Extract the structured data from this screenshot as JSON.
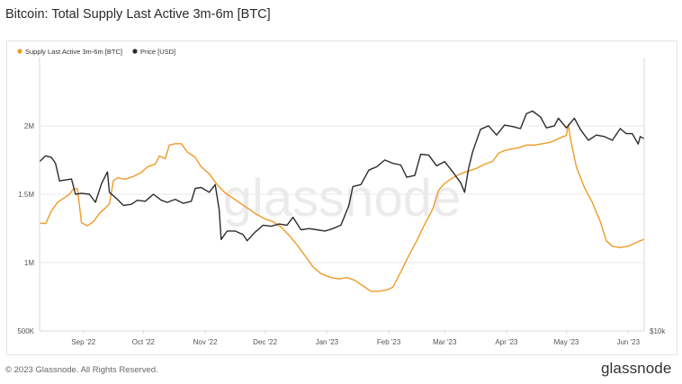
{
  "title": "Bitcoin: Total Supply Last Active 3m-6m [BTC]",
  "footer": {
    "copyright": "© 2023 Glassnode. All Rights Reserved.",
    "brand": "glassnode"
  },
  "watermark": "glassnode",
  "colors": {
    "supply": "#f09a27",
    "price": "#2c2c2c",
    "grid": "#e9e9e9",
    "axis_text": "#555555",
    "watermark": "#ebebeb"
  },
  "chart_data": {
    "type": "line",
    "title": "Bitcoin: Total Supply Last Active 3m-6m [BTC]",
    "legend_position": "top-left",
    "grid": true,
    "x_range": [
      "2022-08-10",
      "2023-06-09"
    ],
    "x_ticks": [
      {
        "date": "2022-09-01",
        "label": "Sep '22"
      },
      {
        "date": "2022-10-01",
        "label": "Oct '22"
      },
      {
        "date": "2022-11-01",
        "label": "Nov '22"
      },
      {
        "date": "2022-12-01",
        "label": "Dec '22"
      },
      {
        "date": "2023-01-01",
        "label": "Jan '23"
      },
      {
        "date": "2023-02-01",
        "label": "Feb '23"
      },
      {
        "date": "2023-03-01",
        "label": "Mar '23"
      },
      {
        "date": "2023-04-01",
        "label": "Apr '23"
      },
      {
        "date": "2023-05-01",
        "label": "May '23"
      },
      {
        "date": "2023-06-01",
        "label": "Jun '23"
      }
    ],
    "y_left": {
      "scale": "linear",
      "range": [
        500000,
        2500000
      ],
      "ticks": [
        {
          "value": 500000,
          "label": "500K"
        },
        {
          "value": 1000000,
          "label": "1M"
        },
        {
          "value": 1500000,
          "label": "1.5M"
        },
        {
          "value": 2000000,
          "label": "2M"
        }
      ]
    },
    "y_right": {
      "scale": "log",
      "range": [
        10000,
        40000
      ],
      "ticks": [
        {
          "value": 10000,
          "label": "$10k"
        }
      ]
    },
    "series": [
      {
        "name": "Supply Last Active 3m-6m [BTC]",
        "axis": "left",
        "color": "#f09a27",
        "points": [
          [
            "2022-08-10",
            1290000
          ],
          [
            "2022-08-13",
            1285000
          ],
          [
            "2022-08-16",
            1380000
          ],
          [
            "2022-08-19",
            1440000
          ],
          [
            "2022-08-22",
            1470000
          ],
          [
            "2022-08-25",
            1500000
          ],
          [
            "2022-08-27",
            1540000
          ],
          [
            "2022-08-29",
            1540000
          ],
          [
            "2022-08-31",
            1290000
          ],
          [
            "2022-09-03",
            1270000
          ],
          [
            "2022-09-06",
            1300000
          ],
          [
            "2022-09-09",
            1360000
          ],
          [
            "2022-09-12",
            1400000
          ],
          [
            "2022-09-14",
            1430000
          ],
          [
            "2022-09-16",
            1600000
          ],
          [
            "2022-09-18",
            1620000
          ],
          [
            "2022-09-22",
            1610000
          ],
          [
            "2022-09-26",
            1630000
          ],
          [
            "2022-09-30",
            1660000
          ],
          [
            "2022-10-03",
            1700000
          ],
          [
            "2022-10-07",
            1720000
          ],
          [
            "2022-10-09",
            1780000
          ],
          [
            "2022-10-12",
            1760000
          ],
          [
            "2022-10-14",
            1860000
          ],
          [
            "2022-10-17",
            1870000
          ],
          [
            "2022-10-20",
            1870000
          ],
          [
            "2022-10-23",
            1810000
          ],
          [
            "2022-10-27",
            1770000
          ],
          [
            "2022-10-30",
            1700000
          ],
          [
            "2022-11-03",
            1650000
          ],
          [
            "2022-11-07",
            1570000
          ],
          [
            "2022-11-11",
            1510000
          ],
          [
            "2022-11-15",
            1470000
          ],
          [
            "2022-11-19",
            1430000
          ],
          [
            "2022-11-23",
            1390000
          ],
          [
            "2022-11-27",
            1350000
          ],
          [
            "2022-12-01",
            1320000
          ],
          [
            "2022-12-05",
            1300000
          ],
          [
            "2022-12-09",
            1260000
          ],
          [
            "2022-12-13",
            1200000
          ],
          [
            "2022-12-17",
            1130000
          ],
          [
            "2022-12-21",
            1050000
          ],
          [
            "2022-12-25",
            970000
          ],
          [
            "2022-12-29",
            920000
          ],
          [
            "2023-01-03",
            890000
          ],
          [
            "2023-01-07",
            880000
          ],
          [
            "2023-01-11",
            890000
          ],
          [
            "2023-01-15",
            870000
          ],
          [
            "2023-01-19",
            830000
          ],
          [
            "2023-01-23",
            790000
          ],
          [
            "2023-01-27",
            790000
          ],
          [
            "2023-01-31",
            800000
          ],
          [
            "2023-02-03",
            820000
          ],
          [
            "2023-02-07",
            930000
          ],
          [
            "2023-02-11",
            1050000
          ],
          [
            "2023-02-15",
            1160000
          ],
          [
            "2023-02-19",
            1280000
          ],
          [
            "2023-02-23",
            1390000
          ],
          [
            "2023-02-26",
            1530000
          ],
          [
            "2023-03-01",
            1580000
          ],
          [
            "2023-03-05",
            1620000
          ],
          [
            "2023-03-09",
            1650000
          ],
          [
            "2023-03-13",
            1670000
          ],
          [
            "2023-03-17",
            1690000
          ],
          [
            "2023-03-21",
            1720000
          ],
          [
            "2023-03-25",
            1740000
          ],
          [
            "2023-03-28",
            1800000
          ],
          [
            "2023-03-31",
            1820000
          ],
          [
            "2023-04-03",
            1830000
          ],
          [
            "2023-04-07",
            1840000
          ],
          [
            "2023-04-11",
            1860000
          ],
          [
            "2023-04-15",
            1860000
          ],
          [
            "2023-04-19",
            1870000
          ],
          [
            "2023-04-23",
            1880000
          ],
          [
            "2023-04-26",
            1900000
          ],
          [
            "2023-04-29",
            1920000
          ],
          [
            "2023-05-01",
            1930000
          ],
          [
            "2023-05-02",
            2010000
          ],
          [
            "2023-05-03",
            1910000
          ],
          [
            "2023-05-06",
            1700000
          ],
          [
            "2023-05-10",
            1550000
          ],
          [
            "2023-05-14",
            1440000
          ],
          [
            "2023-05-18",
            1300000
          ],
          [
            "2023-05-21",
            1160000
          ],
          [
            "2023-05-24",
            1120000
          ],
          [
            "2023-05-28",
            1110000
          ],
          [
            "2023-06-01",
            1120000
          ],
          [
            "2023-06-04",
            1140000
          ],
          [
            "2023-06-07",
            1160000
          ],
          [
            "2023-06-09",
            1170000
          ]
        ]
      },
      {
        "name": "Price [USD]",
        "axis": "right",
        "color": "#2c2c2c",
        "points": [
          [
            "2022-08-10",
            23600
          ],
          [
            "2022-08-13",
            24300
          ],
          [
            "2022-08-16",
            24100
          ],
          [
            "2022-08-18",
            23400
          ],
          [
            "2022-08-20",
            21400
          ],
          [
            "2022-08-23",
            21500
          ],
          [
            "2022-08-26",
            21600
          ],
          [
            "2022-08-28",
            20000
          ],
          [
            "2022-08-31",
            20100
          ],
          [
            "2022-09-04",
            20000
          ],
          [
            "2022-09-07",
            19200
          ],
          [
            "2022-09-10",
            21100
          ],
          [
            "2022-09-13",
            22400
          ],
          [
            "2022-09-14",
            20200
          ],
          [
            "2022-09-18",
            19500
          ],
          [
            "2022-09-21",
            18900
          ],
          [
            "2022-09-25",
            19000
          ],
          [
            "2022-09-28",
            19400
          ],
          [
            "2022-10-02",
            19300
          ],
          [
            "2022-10-06",
            20000
          ],
          [
            "2022-10-10",
            19400
          ],
          [
            "2022-10-13",
            19200
          ],
          [
            "2022-10-17",
            19500
          ],
          [
            "2022-10-21",
            19100
          ],
          [
            "2022-10-25",
            19300
          ],
          [
            "2022-10-27",
            20600
          ],
          [
            "2022-10-30",
            20700
          ],
          [
            "2022-11-03",
            20200
          ],
          [
            "2022-11-06",
            21000
          ],
          [
            "2022-11-08",
            18500
          ],
          [
            "2022-11-09",
            15900
          ],
          [
            "2022-11-12",
            16600
          ],
          [
            "2022-11-16",
            16600
          ],
          [
            "2022-11-20",
            16300
          ],
          [
            "2022-11-22",
            15800
          ],
          [
            "2022-11-26",
            16500
          ],
          [
            "2022-11-30",
            17100
          ],
          [
            "2022-12-04",
            17000
          ],
          [
            "2022-12-08",
            17200
          ],
          [
            "2022-12-12",
            17100
          ],
          [
            "2022-12-15",
            17800
          ],
          [
            "2022-12-19",
            16700
          ],
          [
            "2022-12-23",
            16800
          ],
          [
            "2022-12-27",
            16700
          ],
          [
            "2022-12-31",
            16600
          ],
          [
            "2023-01-04",
            16800
          ],
          [
            "2023-01-08",
            17100
          ],
          [
            "2023-01-12",
            18900
          ],
          [
            "2023-01-14",
            20800
          ],
          [
            "2023-01-18",
            21000
          ],
          [
            "2023-01-22",
            22600
          ],
          [
            "2023-01-26",
            23000
          ],
          [
            "2023-01-30",
            23800
          ],
          [
            "2023-02-03",
            23400
          ],
          [
            "2023-02-07",
            23200
          ],
          [
            "2023-02-10",
            21800
          ],
          [
            "2023-02-14",
            22000
          ],
          [
            "2023-02-17",
            24500
          ],
          [
            "2023-02-21",
            24400
          ],
          [
            "2023-02-25",
            23100
          ],
          [
            "2023-03-01",
            23600
          ],
          [
            "2023-03-05",
            22400
          ],
          [
            "2023-03-09",
            21200
          ],
          [
            "2023-03-11",
            20200
          ],
          [
            "2023-03-13",
            22800
          ],
          [
            "2023-03-15",
            24800
          ],
          [
            "2023-03-19",
            27800
          ],
          [
            "2023-03-23",
            28300
          ],
          [
            "2023-03-27",
            27000
          ],
          [
            "2023-03-31",
            28400
          ],
          [
            "2023-04-04",
            28200
          ],
          [
            "2023-04-08",
            27900
          ],
          [
            "2023-04-11",
            30100
          ],
          [
            "2023-04-14",
            30500
          ],
          [
            "2023-04-18",
            29600
          ],
          [
            "2023-04-21",
            28000
          ],
          [
            "2023-04-25",
            28300
          ],
          [
            "2023-04-27",
            29400
          ],
          [
            "2023-05-01",
            28000
          ],
          [
            "2023-05-05",
            29400
          ],
          [
            "2023-05-08",
            27800
          ],
          [
            "2023-05-12",
            26300
          ],
          [
            "2023-05-16",
            27000
          ],
          [
            "2023-05-20",
            26800
          ],
          [
            "2023-05-24",
            26300
          ],
          [
            "2023-05-28",
            27900
          ],
          [
            "2023-05-31",
            27200
          ],
          [
            "2023-06-03",
            27200
          ],
          [
            "2023-06-06",
            25800
          ],
          [
            "2023-06-07",
            26800
          ],
          [
            "2023-06-09",
            26500
          ]
        ]
      }
    ]
  }
}
